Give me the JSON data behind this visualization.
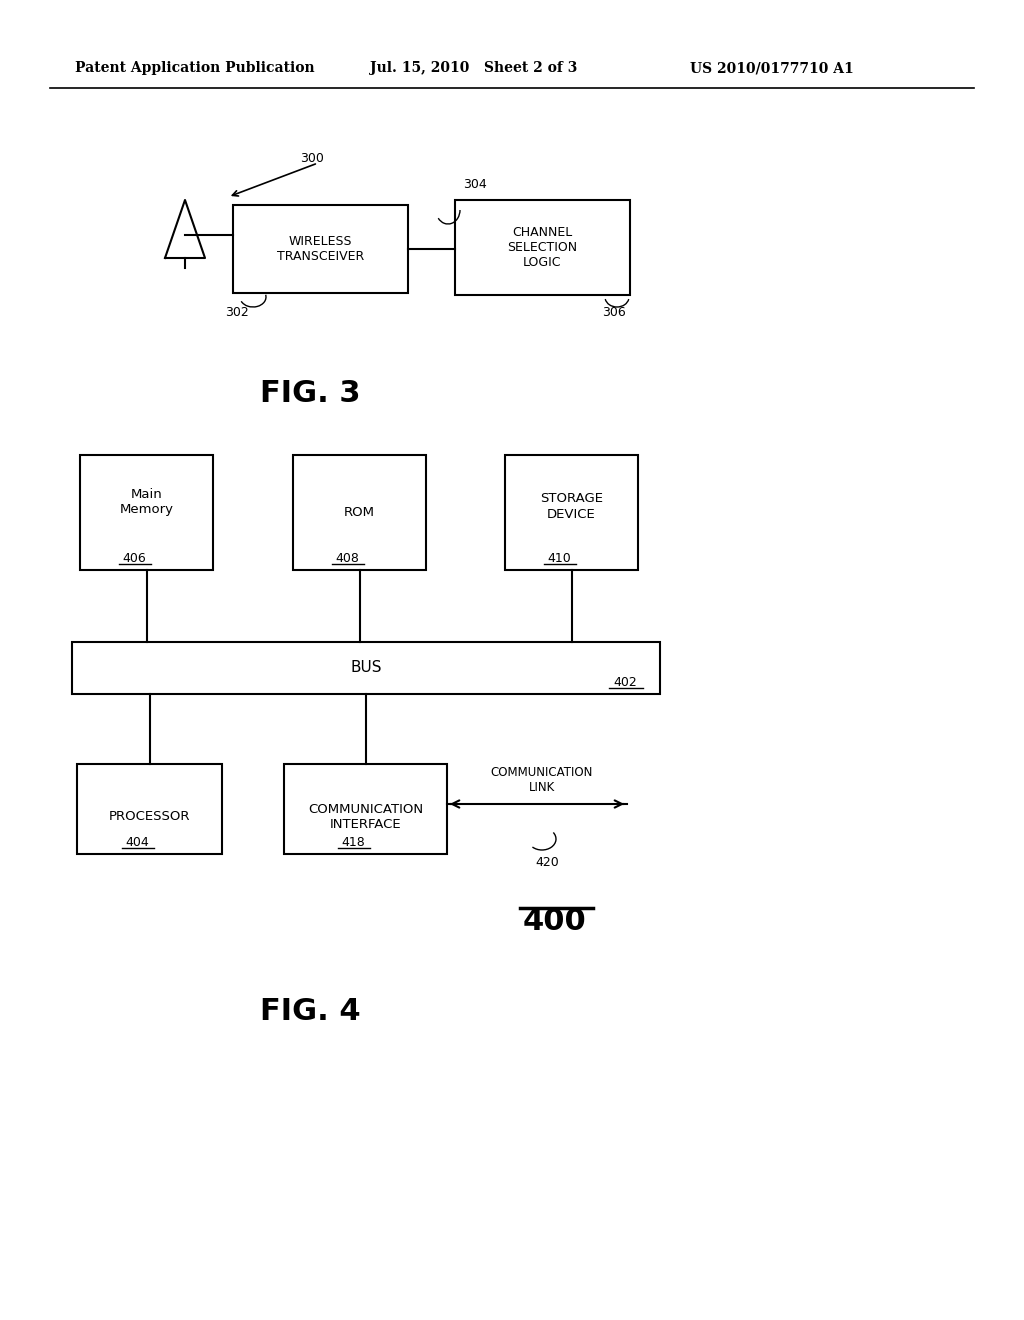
{
  "bg_color": "#ffffff",
  "header_left": "Patent Application Publication",
  "header_center": "Jul. 15, 2010   Sheet 2 of 3",
  "header_right": "US 2010/0177710 A1",
  "fig3_label": "FIG. 3",
  "fig4_label": "FIG. 4",
  "label_300": "300",
  "label_302": "302",
  "label_304": "304",
  "label_306": "306",
  "label_400": "400",
  "label_402": "402",
  "label_404": "404",
  "label_406": "406",
  "label_408": "408",
  "label_410": "410",
  "label_418": "418",
  "label_420": "420",
  "wt_text": "WIRELESS\nTRANSCEIVER",
  "csl_text": "CHANNEL\nSELECTION\nLOGIC",
  "bus_text": "BUS",
  "mm_text": "Main\nMemory",
  "rom_text": "ROM",
  "sd_text": "STORAGE\nDEVICE",
  "proc_text": "PROCESSOR",
  "ci_text": "COMMUNICATION\nINTERFACE",
  "comm_link_text": "COMMUNICATION\nLINK"
}
